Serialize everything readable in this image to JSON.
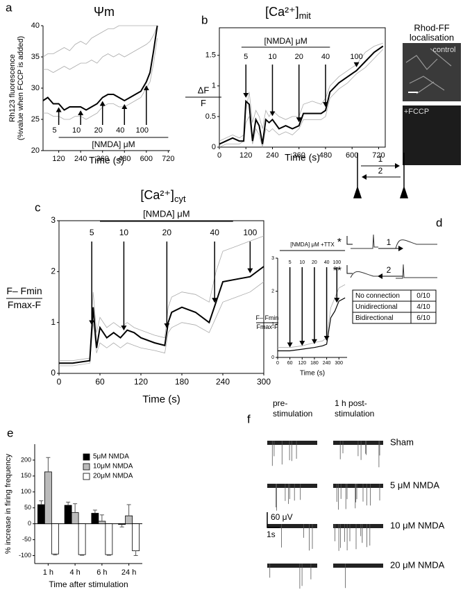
{
  "panel_labels": [
    "a",
    "b",
    "c",
    "d",
    "e",
    "f"
  ],
  "chart_data": [
    {
      "type": "line",
      "title": "Ψm",
      "ylabel": [
        "Rh123 fluorescence",
        "(%value when FCCP is added)"
      ],
      "xlabel": "Time (s)",
      "bracket_label": "[NMDA] μM",
      "x": [
        34,
        60,
        90,
        120,
        150,
        180,
        210,
        240,
        270,
        300,
        330,
        360,
        390,
        420,
        450,
        480,
        510,
        540,
        570,
        600,
        620,
        640,
        660
      ],
      "series": [
        {
          "color": "#aaaaaa",
          "values": [
            35,
            35.5,
            35.5,
            36,
            36.5,
            36,
            37,
            37.5,
            37,
            38,
            38.5,
            39,
            39.5,
            39.5,
            40,
            40,
            40,
            40,
            40,
            40,
            40,
            40,
            40
          ]
        },
        {
          "color": "#aaaaaa",
          "values": [
            33,
            33,
            32.5,
            33,
            33.5,
            33,
            33.5,
            34,
            34,
            34.5,
            34,
            35,
            35.5,
            35,
            35.5,
            35,
            35.5,
            36,
            36.5,
            37,
            37.5,
            38.5,
            40
          ]
        },
        {
          "color": "#aaaaaa",
          "values": [
            26,
            26,
            25.5,
            25.5,
            25,
            25,
            25.5,
            25.5,
            25,
            25.5,
            26,
            27,
            27.5,
            27.5,
            27,
            27,
            27.5,
            28,
            28.5,
            30,
            31,
            34,
            38
          ]
        },
        {
          "color": "#000000",
          "values": [
            28,
            28.5,
            27.5,
            27.5,
            26.5,
            27,
            27,
            27,
            26.5,
            27,
            27.5,
            28.5,
            29,
            29,
            28.5,
            28,
            28.5,
            29,
            29.5,
            31,
            32.5,
            36,
            40
          ]
        }
      ],
      "annotations": [
        {
          "label": "5",
          "x": 120
        },
        {
          "label": "10",
          "x": 240
        },
        {
          "label": "20",
          "x": 360
        },
        {
          "label": "40",
          "x": 480
        },
        {
          "label": "100",
          "x": 600
        }
      ],
      "xlim": [
        34,
        730
      ],
      "ylim": [
        20,
        40
      ],
      "xticks": [
        120,
        240,
        360,
        480,
        600,
        720
      ],
      "yticks": [
        20,
        25,
        30,
        35,
        40
      ]
    },
    {
      "type": "line",
      "title": "[Ca²⁺]",
      "title_subscript": "mit",
      "ylabel": [
        "ΔF",
        "F"
      ],
      "xlabel": "Time (s)",
      "bracket_label": "[NMDA] μM",
      "x": [
        0,
        30,
        60,
        90,
        110,
        120,
        135,
        150,
        165,
        180,
        195,
        210,
        225,
        240,
        270,
        300,
        330,
        360,
        380,
        420,
        460,
        480,
        500,
        540,
        580,
        620,
        660,
        700,
        740
      ],
      "series": [
        {
          "color": "#aaaaaa",
          "values": [
            0.1,
            0.15,
            0.2,
            0.15,
            0.2,
            0.6,
            0.9,
            0.4,
            0.6,
            0.5,
            0.3,
            0.6,
            0.5,
            0.6,
            0.5,
            0.45,
            0.5,
            0.5,
            0.7,
            0.75,
            0.7,
            0.8,
            1.0,
            1.15,
            1.25,
            1.35,
            1.55,
            1.65,
            1.7
          ]
        },
        {
          "color": "#aaaaaa",
          "values": [
            0.0,
            0.05,
            0.05,
            0.05,
            0.1,
            0.4,
            0.5,
            0.05,
            0.3,
            0.2,
            0.0,
            0.3,
            0.25,
            0.3,
            0.2,
            0.25,
            0.2,
            0.3,
            0.45,
            0.45,
            0.45,
            0.5,
            0.8,
            0.95,
            1.05,
            1.2,
            1.3,
            1.45,
            1.6
          ]
        },
        {
          "color": "#000000",
          "values": [
            0.05,
            0.1,
            0.15,
            0.1,
            0.1,
            0.75,
            0.7,
            0.1,
            0.45,
            0.35,
            0.05,
            0.45,
            0.4,
            0.45,
            0.3,
            0.35,
            0.3,
            0.35,
            0.55,
            0.55,
            0.55,
            0.6,
            0.9,
            1.05,
            1.15,
            1.25,
            1.4,
            1.55,
            1.65
          ]
        }
      ],
      "annotations": [
        {
          "label": "5",
          "x": 120
        },
        {
          "label": "10",
          "x": 240
        },
        {
          "label": "20",
          "x": 360
        },
        {
          "label": "40",
          "x": 480
        },
        {
          "label": "100",
          "x": 620
        }
      ],
      "xlim": [
        0,
        750
      ],
      "ylim": [
        0,
        1.95
      ],
      "xticks": [
        0,
        120,
        240,
        360,
        480,
        600,
        720
      ],
      "yticks": [
        0,
        0.5,
        1,
        1.5
      ]
    },
    {
      "type": "line",
      "title": "[Ca²⁺]",
      "title_subscript": "cyt",
      "ylabel": [
        "F– Fmin",
        "Fmax-F"
      ],
      "xlabel": "Time (s)",
      "bracket_label": "[NMDA] μM",
      "x": [
        0,
        20,
        45,
        50,
        55,
        60,
        70,
        80,
        90,
        100,
        110,
        120,
        140,
        155,
        160,
        165,
        180,
        200,
        220,
        230,
        240,
        260,
        280,
        300
      ],
      "series": [
        {
          "color": "#aaaaaa",
          "values": [
            0.25,
            0.25,
            0.3,
            1.6,
            0.8,
            1.1,
            0.9,
            1.0,
            0.9,
            1.0,
            0.9,
            0.85,
            0.75,
            0.7,
            1.3,
            1.5,
            1.6,
            1.55,
            1.4,
            2.0,
            2.4,
            2.5,
            2.6,
            2.7
          ]
        },
        {
          "color": "#aaaaaa",
          "values": [
            0.15,
            0.15,
            0.2,
            1.0,
            0.4,
            0.6,
            0.5,
            0.6,
            0.5,
            0.6,
            0.55,
            0.5,
            0.45,
            0.4,
            0.8,
            0.9,
            1.0,
            0.95,
            0.8,
            1.1,
            1.4,
            1.5,
            1.6,
            1.8
          ]
        },
        {
          "color": "#000000",
          "values": [
            0.2,
            0.2,
            0.25,
            1.3,
            0.5,
            0.9,
            0.7,
            0.8,
            0.7,
            0.85,
            0.8,
            0.7,
            0.6,
            0.55,
            1.0,
            1.2,
            1.3,
            1.2,
            1.0,
            1.4,
            1.8,
            1.85,
            1.9,
            2.1
          ]
        }
      ],
      "annotations": [
        {
          "label": "5",
          "x": 48
        },
        {
          "label": "10",
          "x": 95
        },
        {
          "label": "20",
          "x": 158
        },
        {
          "label": "40",
          "x": 228
        },
        {
          "label": "100",
          "x": 280
        }
      ],
      "xlim": [
        0,
        300
      ],
      "ylim": [
        0,
        3
      ],
      "xticks": [
        0,
        60,
        120,
        180,
        240,
        300
      ],
      "yticks": [
        0,
        1,
        2,
        3
      ]
    },
    {
      "type": "line",
      "ylabel": [
        "F– Fmin",
        "Fmax-F"
      ],
      "xlabel": "Time (s)",
      "bracket_label": "[NMDA] μM +TTX",
      "x": [
        0,
        60,
        120,
        180,
        220,
        240,
        260,
        280,
        300,
        330
      ],
      "series": [
        {
          "color": "#aaaaaa",
          "values": [
            0.3,
            0.3,
            0.35,
            0.45,
            0.5,
            0.6,
            1.5,
            1.8,
            2.1,
            2.2
          ]
        },
        {
          "color": "#000000",
          "values": [
            0.2,
            0.2,
            0.25,
            0.3,
            0.35,
            0.4,
            1.2,
            1.4,
            1.7,
            1.8
          ]
        }
      ],
      "annotations": [
        {
          "label": "5",
          "x": 60
        },
        {
          "label": "10",
          "x": 120
        },
        {
          "label": "20",
          "x": 180
        },
        {
          "label": "40",
          "x": 240
        },
        {
          "label": "100",
          "x": 290
        }
      ],
      "xlim": [
        0,
        340
      ],
      "ylim": [
        0,
        3
      ],
      "xticks": [
        0,
        60,
        120,
        180,
        240,
        300
      ],
      "yticks": [
        0,
        1,
        2,
        3
      ]
    },
    {
      "type": "bar",
      "ylabel": "% increase in firing frequency",
      "xlabel": "Time after stimulation",
      "categories": [
        "1 h",
        "4 h",
        "6 h",
        "24 h"
      ],
      "series": [
        {
          "name": "5μM NMDA",
          "color": "#000000",
          "values": [
            60,
            58,
            33,
            -2
          ],
          "errors": [
            12,
            10,
            10,
            8
          ]
        },
        {
          "name": "10μM NMDA",
          "color": "#bbbbbb",
          "values": [
            163,
            35,
            8,
            25
          ],
          "errors": [
            45,
            28,
            20,
            35
          ]
        },
        {
          "name": "20μM NMDA",
          "color": "#ffffff",
          "values": [
            -95,
            -97,
            -97,
            -85
          ],
          "errors": [
            3,
            2,
            2,
            15
          ]
        }
      ],
      "ylim": [
        -125,
        250
      ],
      "yticks": [
        -100,
        -50,
        0,
        50,
        100,
        150,
        200
      ]
    }
  ],
  "images": {
    "title": [
      "Rhod-FF",
      "localisation"
    ],
    "labels": [
      "control",
      "+FCCP"
    ]
  },
  "diagram": {
    "arrow_labels": [
      "1",
      "2"
    ],
    "markers": [
      "*",
      "**"
    ],
    "table": [
      [
        "No connection",
        "0/10"
      ],
      [
        "Unidirectional",
        "4/10"
      ],
      [
        "Bidirectional",
        "6/10"
      ]
    ]
  },
  "recordings": {
    "columns": [
      [
        "pre-",
        "stimulation"
      ],
      [
        "1 h post-",
        "stimulation"
      ]
    ],
    "rows": [
      "Sham",
      "5 μM NMDA",
      "10 μM NMDA",
      "20 μM NMDA"
    ],
    "scale": [
      "60 μV",
      "1s"
    ]
  }
}
